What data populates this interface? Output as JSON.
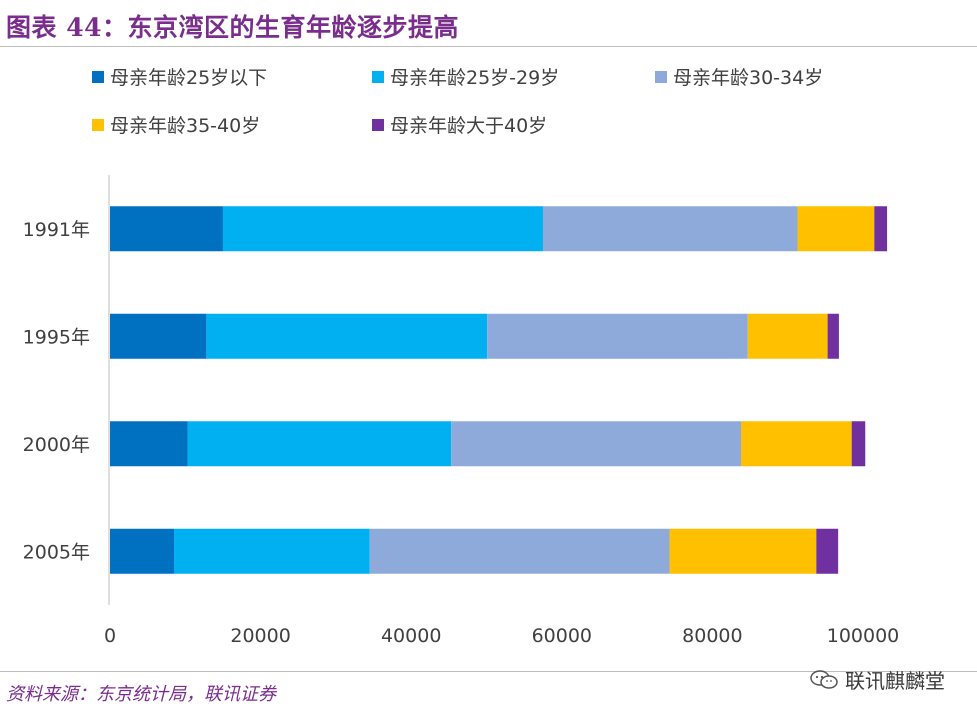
{
  "page": {
    "title": "图表 44：东京湾区的生育年龄逐步提高",
    "source": "资料来源：东京统计局，联讯证券",
    "watermark": "联讯麒麟堂"
  },
  "chart_data": {
    "type": "bar",
    "orientation": "horizontal",
    "stacked": true,
    "title": "图表 44：东京湾区的生育年龄逐步提高",
    "categories": [
      "1991年",
      "1995年",
      "2000年",
      "2005年"
    ],
    "series": [
      {
        "name": "母亲年龄25岁以下",
        "color": "#0070c0",
        "values": [
          15000,
          12800,
          10300,
          8500
        ]
      },
      {
        "name": "母亲年龄25岁-29岁",
        "color": "#00b0f0",
        "values": [
          42500,
          37300,
          35000,
          26000
        ]
      },
      {
        "name": "母亲年龄30-34岁",
        "color": "#8eaadb",
        "values": [
          33800,
          34600,
          38500,
          39800
        ]
      },
      {
        "name": "母亲年龄35-40岁",
        "color": "#ffc000",
        "values": [
          10200,
          10600,
          14700,
          19500
        ]
      },
      {
        "name": "母亲年龄大于40岁",
        "color": "#7030a0",
        "values": [
          1700,
          1500,
          1800,
          2900
        ]
      }
    ],
    "xlim": [
      0,
      100000
    ],
    "xticks": [
      "0",
      "20000",
      "40000",
      "60000",
      "80000",
      "100000"
    ],
    "xlabel": "",
    "ylabel": "",
    "grid": false,
    "legend_position": "top"
  }
}
